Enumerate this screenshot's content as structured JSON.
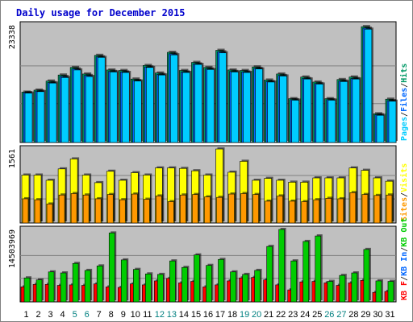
{
  "title": "Daily usage for December 2015",
  "colors": {
    "pages": "#00ccff",
    "files": "#0066ff",
    "hits": "#009966",
    "visits": "#ffff00",
    "sites": "#ff9900",
    "kb_in": "#0066ff",
    "kb_out": "#00cc00",
    "kb_f": "#ff0000",
    "plot_bg": "#c0c0c0",
    "grid": "#808080",
    "weekend_label": "#008080",
    "weekday_label": "#000000",
    "title": "#0000cc"
  },
  "chart_data": [
    {
      "type": "bar",
      "panel": "top",
      "ymax_label": "23338",
      "ylim": [
        0,
        23338
      ],
      "right_axis_label": [
        "Pages",
        "Files",
        "Hits"
      ],
      "x": [
        1,
        2,
        3,
        4,
        5,
        6,
        7,
        8,
        9,
        10,
        11,
        12,
        13,
        14,
        15,
        16,
        17,
        18,
        19,
        20,
        21,
        22,
        23,
        24,
        25,
        26,
        27,
        28,
        29,
        30,
        31
      ],
      "series": [
        {
          "name": "Hits",
          "values": [
            10000,
            10400,
            12200,
            13400,
            14900,
            13600,
            17300,
            14400,
            14300,
            12600,
            15300,
            13800,
            17900,
            14300,
            15900,
            14900,
            18300,
            14400,
            14300,
            15000,
            12400,
            13600,
            8700,
            13000,
            12000,
            8700,
            12500,
            13000,
            23000,
            5700,
            8600
          ]
        },
        {
          "name": "Files",
          "values": [
            9900,
            10200,
            11900,
            13100,
            14600,
            13300,
            17000,
            14100,
            14000,
            12300,
            15000,
            13500,
            17600,
            14000,
            15600,
            14600,
            18000,
            14100,
            14000,
            14700,
            12100,
            13300,
            8500,
            12700,
            11700,
            8500,
            12200,
            12700,
            22700,
            5500,
            8300
          ]
        },
        {
          "name": "Pages",
          "values": [
            9800,
            10100,
            11800,
            12900,
            14400,
            13100,
            16900,
            14000,
            13900,
            12200,
            14900,
            13400,
            17400,
            13900,
            15500,
            14500,
            17800,
            14000,
            13900,
            14600,
            12000,
            13200,
            8400,
            12600,
            11600,
            8400,
            12100,
            12600,
            22500,
            5400,
            8200
          ]
        }
      ]
    },
    {
      "type": "bar",
      "panel": "middle",
      "ymax_label": "1561",
      "ylim": [
        0,
        1561
      ],
      "right_axis_label": [
        "Sites",
        "Visits"
      ],
      "x": [
        1,
        2,
        3,
        4,
        5,
        6,
        7,
        8,
        9,
        10,
        11,
        12,
        13,
        14,
        15,
        16,
        17,
        18,
        19,
        20,
        21,
        22,
        23,
        24,
        25,
        26,
        27,
        28,
        29,
        30,
        31
      ],
      "series": [
        {
          "name": "Visits",
          "values": [
            1010,
            1010,
            900,
            1140,
            1350,
            1010,
            850,
            1090,
            900,
            1060,
            1010,
            1160,
            1160,
            1150,
            1100,
            1010,
            1560,
            1070,
            1300,
            900,
            940,
            900,
            860,
            860,
            950,
            950,
            950,
            1160,
            1110,
            950,
            880
          ]
        },
        {
          "name": "Sites",
          "values": [
            510,
            490,
            400,
            590,
            620,
            590,
            510,
            600,
            490,
            610,
            500,
            570,
            450,
            590,
            600,
            550,
            540,
            610,
            620,
            600,
            460,
            570,
            460,
            450,
            490,
            520,
            510,
            640,
            600,
            580,
            590
          ]
        }
      ]
    },
    {
      "type": "bar",
      "panel": "bottom",
      "ymax_label": "14503969",
      "ylim": [
        0,
        14503969
      ],
      "right_axis_label": [
        "KB F",
        "KB In",
        "KB Out"
      ],
      "x": [
        1,
        2,
        3,
        4,
        5,
        6,
        7,
        8,
        9,
        10,
        11,
        12,
        13,
        14,
        15,
        16,
        17,
        18,
        19,
        20,
        21,
        22,
        23,
        24,
        25,
        26,
        27,
        28,
        29,
        30,
        31
      ],
      "series": [
        {
          "name": "KB F",
          "values": [
            3000000,
            3500000,
            3500000,
            3300000,
            3400000,
            3300000,
            3600000,
            3000000,
            2900000,
            3600000,
            3400000,
            4200000,
            4700000,
            3800000,
            4100000,
            3000000,
            3400000,
            4200000,
            4800000,
            4900000,
            4400000,
            3400000,
            2400000,
            4000000,
            4100000,
            3800000,
            3300000,
            3800000,
            4300000,
            1900000,
            2100000
          ]
        },
        {
          "name": "KB Out",
          "values": [
            4800000,
            4400000,
            6000000,
            5800000,
            7700000,
            6300000,
            7200000,
            13800000,
            8400000,
            6500000,
            5600000,
            5500000,
            8200000,
            6900000,
            9400000,
            7300000,
            8500000,
            6000000,
            5500000,
            6300000,
            11100000,
            14500000,
            8200000,
            12100000,
            13200000,
            4100000,
            5300000,
            5800000,
            10500000,
            4200000,
            4100000
          ]
        }
      ]
    }
  ],
  "x_axis_days": [
    "1",
    "2",
    "3",
    "4",
    "5",
    "6",
    "7",
    "8",
    "9",
    "10",
    "11",
    "12",
    "13",
    "14",
    "15",
    "16",
    "17",
    "18",
    "19",
    "20",
    "21",
    "22",
    "23",
    "24",
    "25",
    "26",
    "27",
    "28",
    "29",
    "30",
    "31"
  ],
  "weekend_days": [
    5,
    6,
    12,
    13,
    19,
    20,
    26,
    27
  ]
}
